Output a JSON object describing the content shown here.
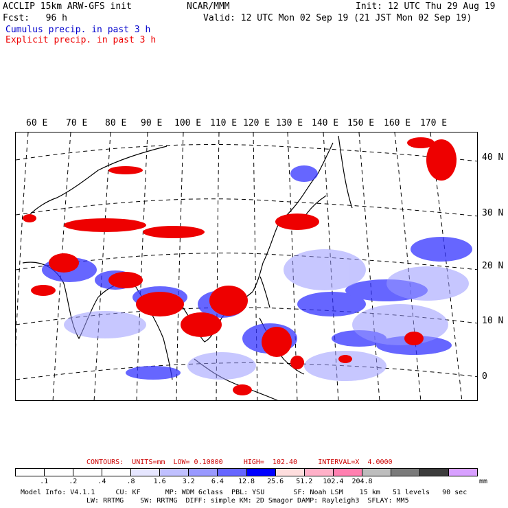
{
  "header": {
    "line1_left": "ACCLIP 15km ARW-GFS init",
    "line1_center": "NCAR/MMM",
    "line1_right": "Init: 12 UTC Thu 29 Aug 19",
    "line2_left": "Fcst:   96 h",
    "line2_right": "Valid: 12 UTC Mon 02 Sep 19 (21 JST Mon 02 Sep 19)",
    "legend_cumulus": "Cumulus precip. in past 3 h",
    "legend_explicit": "Explicit precip. in past 3 h",
    "cumulus_color": "#0000cc",
    "explicit_color": "#ee0000"
  },
  "map": {
    "lon_labels": [
      "60 E",
      "70 E",
      "80 E",
      "90 E",
      "100 E",
      "110 E",
      "120 E",
      "130 E",
      "140 E",
      "150 E",
      "160 E",
      "170 E"
    ],
    "lat_labels": [
      "40 N",
      "30 N",
      "20 N",
      "10 N",
      "0"
    ]
  },
  "contour_info": {
    "contours": "CONTOURS:",
    "units": "UNITS=mm",
    "low": "LOW= 0.10000",
    "high": "HIGH=  102.40",
    "interval": "INTERVAL=X  4.0000",
    "color": "#cc0000"
  },
  "colorbar": {
    "colors": [
      "#ffffff",
      "#ffffff",
      "#ffffff",
      "#ffffff",
      "#e6e6ff",
      "#c0c0ff",
      "#9999ff",
      "#6666ff",
      "#0000ff",
      "#ffdede",
      "#ffb0c8",
      "#ff80b0",
      "#bdbdbd",
      "#7a7a7a",
      "#3c3c3c",
      "#d8a0ff"
    ],
    "ticks": [
      ".1",
      ".2",
      ".4",
      ".8",
      "1.6",
      "3.2",
      "6.4",
      "12.8",
      "25.6",
      "51.2",
      "102.4",
      "204.8"
    ],
    "unit": "mm"
  },
  "footer": {
    "line1": "Model Info: V4.1.1     CU: KF      MP: WDM 6class  PBL: YSU       SF: Noah LSM    15 km   51 levels   90 sec",
    "line2": "LW: RRTMG    SW: RRTMG  DIFF: simple KM: 2D Smagor DAMP: Rayleigh3  SFLAY: MM5"
  }
}
